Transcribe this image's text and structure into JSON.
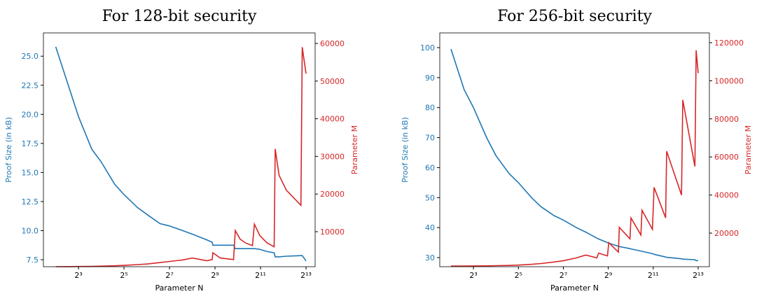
{
  "chart_data": [
    {
      "type": "line",
      "title": "For 128-bit security",
      "xlabel": "Parameter N",
      "ylabel": "Proof Size (in kB)",
      "y2label": "Parameter M",
      "xscale": "log",
      "xlim": [
        2.75,
        10800
      ],
      "xticks": [
        {
          "value": 8,
          "label": "2³"
        },
        {
          "value": 32,
          "label": "2⁵"
        },
        {
          "value": 128,
          "label": "2⁷"
        },
        {
          "value": 512,
          "label": "2⁹"
        },
        {
          "value": 2048,
          "label": "2¹¹"
        },
        {
          "value": 8192,
          "label": "2¹³"
        }
      ],
      "ylim": [
        6.9,
        27.0
      ],
      "yticks": [
        7.5,
        {
          "value": 10,
          "label": "10.0"
        },
        12.5,
        {
          "value": 15,
          "label": "15.0"
        },
        17.5,
        {
          "value": 20,
          "label": "20.0"
        },
        22.5,
        {
          "value": 25,
          "label": "25.0"
        }
      ],
      "y2lim": [
        700,
        62800
      ],
      "y2ticks": [
        10000,
        20000,
        30000,
        40000,
        50000,
        60000
      ],
      "x": [
        4,
        6,
        8,
        12,
        16,
        24,
        32,
        48,
        64,
        96,
        128,
        192,
        256,
        400,
        470,
        480,
        600,
        900,
        950,
        1100,
        1300,
        1600,
        1700,
        2000,
        2500,
        3100,
        3200,
        3600,
        4500,
        7000,
        7300,
        8192
      ],
      "series": [
        {
          "color": "#1f77b4",
          "axis": "y",
          "values": [
            25.8,
            22.3,
            19.8,
            17.0,
            15.9,
            14.0,
            13.1,
            12.0,
            11.4,
            10.6,
            10.4,
            10.0,
            9.7,
            9.2,
            9.0,
            8.75,
            8.75,
            8.75,
            8.45,
            8.45,
            8.45,
            8.45,
            8.45,
            8.4,
            8.2,
            8.1,
            7.75,
            7.75,
            7.8,
            7.85,
            7.85,
            7.4
          ]
        },
        {
          "color": "#d62728",
          "axis": "y2",
          "values": [
            700,
            720,
            750,
            800,
            850,
            950,
            1050,
            1250,
            1400,
            1800,
            2100,
            2500,
            3000,
            2300,
            2600,
            4400,
            3000,
            2600,
            10300,
            8000,
            7000,
            6300,
            12000,
            9000,
            7000,
            6000,
            32000,
            25000,
            21000,
            17000,
            59000,
            52000
          ]
        }
      ]
    },
    {
      "type": "line",
      "title": "For 256-bit security",
      "xlabel": "Parameter N",
      "ylabel": "Proof Size (in kB)",
      "y2label": "Parameter M",
      "xscale": "log",
      "xlim": [
        2.83,
        11580
      ],
      "xticks": [
        {
          "value": 8,
          "label": "2³"
        },
        {
          "value": 32,
          "label": "2⁵"
        },
        {
          "value": 128,
          "label": "2⁷"
        },
        {
          "value": 512,
          "label": "2⁹"
        },
        {
          "value": 2048,
          "label": "2¹¹"
        },
        {
          "value": 8192,
          "label": "2¹³"
        }
      ],
      "ylim": [
        26.97,
        104.9
      ],
      "yticks": [
        30,
        40,
        50,
        60,
        70,
        80,
        90,
        100
      ],
      "y2lim": [
        2350,
        125150
      ],
      "y2ticks": [
        20000,
        40000,
        60000,
        80000,
        100000,
        120000
      ],
      "x": [
        4,
        6,
        8,
        12,
        16,
        24,
        32,
        48,
        64,
        96,
        128,
        192,
        256,
        360,
        380,
        500,
        520,
        700,
        720,
        1000,
        1030,
        1400,
        1450,
        2000,
        2100,
        3000,
        3100,
        4900,
        5100,
        7400,
        7700,
        8192
      ],
      "series": [
        {
          "color": "#1f77b4",
          "axis": "y",
          "values": [
            99.5,
            86,
            80,
            70,
            64,
            58,
            55,
            50,
            47,
            44,
            42.5,
            40,
            38.5,
            36.5,
            36.2,
            35,
            34.8,
            33.8,
            33.7,
            33,
            32.9,
            32.2,
            32.1,
            31.3,
            31.1,
            30.2,
            30.1,
            29.6,
            29.5,
            29.3,
            29.0,
            29.0
          ]
        },
        {
          "color": "#d62728",
          "axis": "y2",
          "values": [
            2700,
            2700,
            2750,
            2800,
            2900,
            3000,
            3200,
            3600,
            4000,
            4800,
            5500,
            7000,
            8500,
            7000,
            9500,
            8000,
            15000,
            10000,
            23000,
            17000,
            28000,
            19000,
            32000,
            22000,
            44000,
            28000,
            63000,
            40000,
            90000,
            55000,
            116000,
            104000
          ]
        }
      ]
    }
  ]
}
